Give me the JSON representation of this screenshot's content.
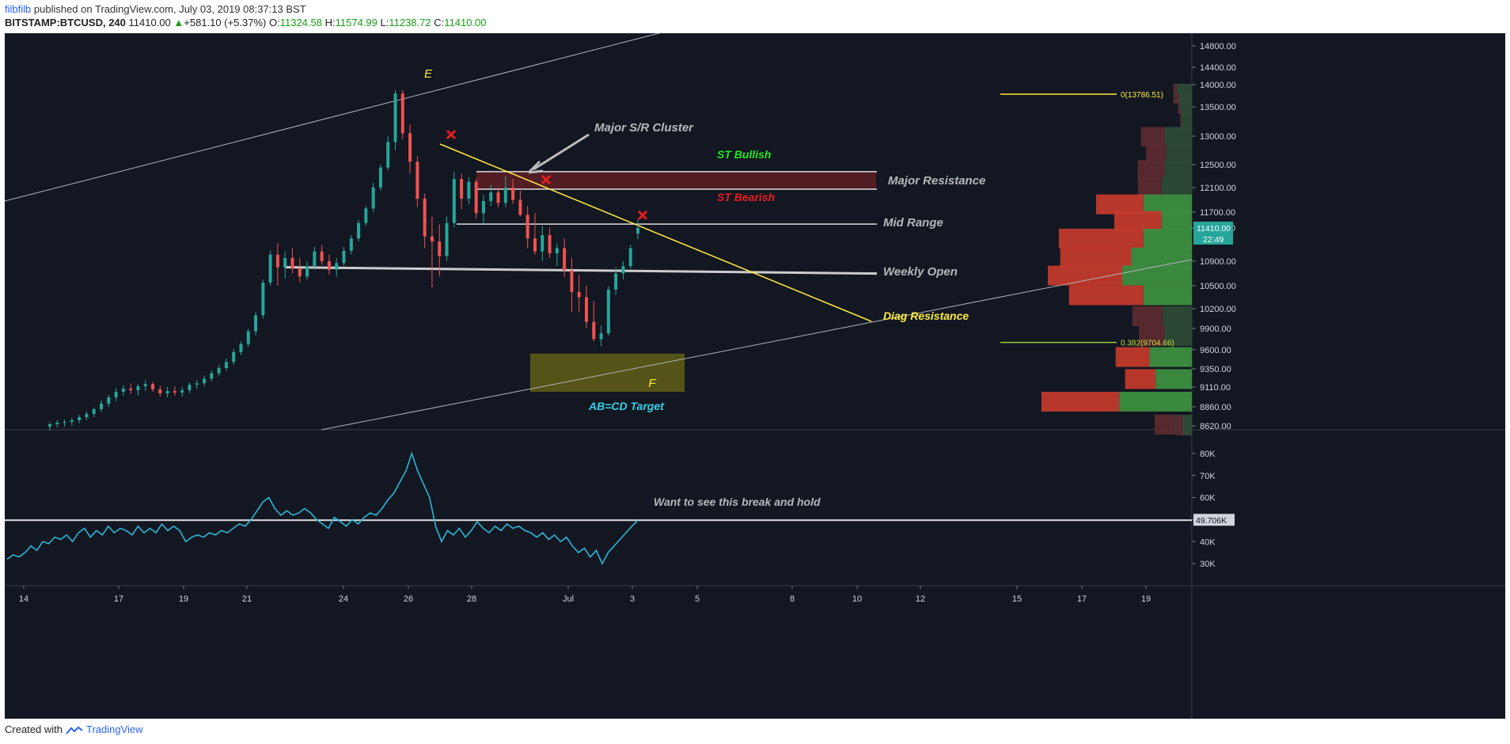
{
  "header": {
    "author": "filbfilb",
    "published_text": "published on TradingView.com, July 03, 2019 08:37:13 BST"
  },
  "symbol_line": {
    "symbol": "BITSTAMP:BTCUSD, 240",
    "last": "11410.00",
    "change_arrow": "▲",
    "change": "+581.10 (+5.37%)",
    "open_label": "O:",
    "open": "11324.58",
    "high_label": "H:",
    "high": "11574.99",
    "low_label": "L:",
    "low": "11238.72",
    "close_label": "C:",
    "close": "11410.00"
  },
  "footer": {
    "created_with": "Created with",
    "brand": "TradingView"
  },
  "colors": {
    "background": "#131722",
    "up": "#26a69a",
    "down": "#ef5350",
    "annotation_yellow": "#ffeb3b",
    "annotation_grey": "#c8c8c8",
    "bullish_green": "#1ee81e",
    "bearish_red": "#e81e1e",
    "target_cyan": "#33d1e8",
    "indicator_line": "#29b6d6"
  },
  "chart_data": {
    "type": "candlestick",
    "price_axis": {
      "ticks": [
        "14800.00",
        "14400.00",
        "14000.00",
        "13500.00",
        "13000.00",
        "12500.00",
        "12100.00",
        "11700.00",
        "11410.00",
        "10900.00",
        "10500.00",
        "10200.00",
        "9900.00",
        "9600.00",
        "9350.00",
        "9110.00",
        "8860.00",
        "8620.00"
      ],
      "ylim": [
        8620,
        14800
      ],
      "last_price_label": "11410.00",
      "countdown_label": "22:49"
    },
    "time_axis": {
      "ticks": [
        "14",
        "17",
        "19",
        "21",
        "24",
        "26",
        "28",
        "Jul",
        "3",
        "5",
        "8",
        "10",
        "12",
        "15",
        "17",
        "19"
      ]
    },
    "candles_ohlc": [
      [
        8610,
        8670,
        8560,
        8640
      ],
      [
        8640,
        8690,
        8600,
        8660
      ],
      [
        8660,
        8700,
        8610,
        8670
      ],
      [
        8670,
        8720,
        8620,
        8690
      ],
      [
        8690,
        8760,
        8650,
        8730
      ],
      [
        8730,
        8800,
        8690,
        8770
      ],
      [
        8770,
        8850,
        8730,
        8830
      ],
      [
        8830,
        8940,
        8790,
        8900
      ],
      [
        8900,
        9010,
        8860,
        8980
      ],
      [
        8980,
        9100,
        8930,
        9050
      ],
      [
        9050,
        9130,
        9000,
        9090
      ],
      [
        9090,
        9160,
        9020,
        9070
      ],
      [
        9070,
        9150,
        9000,
        9120
      ],
      [
        9120,
        9200,
        9060,
        9150
      ],
      [
        9150,
        9180,
        9050,
        9080
      ],
      [
        9080,
        9130,
        8990,
        9030
      ],
      [
        9030,
        9110,
        8980,
        9060
      ],
      [
        9060,
        9120,
        9000,
        9040
      ],
      [
        9040,
        9110,
        8990,
        9070
      ],
      [
        9070,
        9170,
        9030,
        9140
      ],
      [
        9140,
        9200,
        9090,
        9160
      ],
      [
        9160,
        9260,
        9120,
        9220
      ],
      [
        9220,
        9330,
        9180,
        9290
      ],
      [
        9290,
        9400,
        9250,
        9360
      ],
      [
        9360,
        9490,
        9320,
        9440
      ],
      [
        9440,
        9610,
        9400,
        9570
      ],
      [
        9570,
        9720,
        9530,
        9680
      ],
      [
        9680,
        9900,
        9640,
        9860
      ],
      [
        9860,
        10150,
        9800,
        10100
      ],
      [
        10100,
        10600,
        10050,
        10550
      ],
      [
        10550,
        11060,
        10500,
        11000
      ],
      [
        11000,
        11180,
        10500,
        10800
      ],
      [
        10800,
        11050,
        10620,
        10950
      ],
      [
        10950,
        11100,
        10700,
        10780
      ],
      [
        10780,
        10950,
        10550,
        10650
      ],
      [
        10650,
        10900,
        10600,
        10820
      ],
      [
        10820,
        11120,
        10760,
        11050
      ],
      [
        11050,
        11150,
        10840,
        10900
      ],
      [
        10900,
        11000,
        10680,
        10760
      ],
      [
        10760,
        10950,
        10650,
        10870
      ],
      [
        10870,
        11120,
        10820,
        11060
      ],
      [
        11060,
        11300,
        11000,
        11250
      ],
      [
        11250,
        11560,
        11200,
        11500
      ],
      [
        11500,
        11800,
        11450,
        11760
      ],
      [
        11760,
        12180,
        11700,
        12100
      ],
      [
        12100,
        12500,
        12050,
        12450
      ],
      [
        12450,
        13000,
        12400,
        12900
      ],
      [
        12900,
        13880,
        12750,
        13800
      ],
      [
        13800,
        13880,
        12950,
        13050
      ],
      [
        13050,
        13200,
        12350,
        12550
      ],
      [
        12550,
        12650,
        11780,
        11920
      ],
      [
        11920,
        12000,
        11100,
        11280
      ],
      [
        11280,
        11620,
        10480,
        11200
      ],
      [
        11200,
        11480,
        10650,
        10980
      ],
      [
        10980,
        11620,
        10900,
        11500
      ],
      [
        11500,
        12380,
        11420,
        12250
      ],
      [
        12250,
        12350,
        11750,
        11920
      ],
      [
        11920,
        12280,
        11820,
        12200
      ],
      [
        12200,
        12250,
        11580,
        11680
      ],
      [
        11680,
        11980,
        11500,
        11880
      ],
      [
        11880,
        12150,
        11800,
        12020
      ],
      [
        12020,
        12100,
        11780,
        11850
      ],
      [
        11850,
        12300,
        11780,
        12100
      ],
      [
        12100,
        12250,
        11830,
        11900
      ],
      [
        11900,
        12050,
        11620,
        11650
      ],
      [
        11650,
        11800,
        11100,
        11250
      ],
      [
        11250,
        11680,
        11000,
        11050
      ],
      [
        11050,
        11450,
        10900,
        11300
      ],
      [
        11300,
        11420,
        10950,
        11020
      ],
      [
        11020,
        11180,
        10820,
        11100
      ],
      [
        11100,
        11250,
        10640,
        10750
      ],
      [
        10750,
        10950,
        10150,
        10420
      ],
      [
        10420,
        10680,
        10150,
        10350
      ],
      [
        10350,
        10500,
        9900,
        10000
      ],
      [
        10000,
        10300,
        9720,
        9750
      ],
      [
        9750,
        9950,
        9650,
        9830
      ],
      [
        9830,
        10500,
        9800,
        10450
      ],
      [
        10450,
        10800,
        10380,
        10700
      ],
      [
        10700,
        10900,
        10600,
        10820
      ],
      [
        10820,
        11150,
        10780,
        11100
      ],
      [
        11324.58,
        11574.99,
        11238.72,
        11410
      ]
    ],
    "volume_profile_rows": [
      {
        "price": 13790,
        "up": 0.25,
        "down": 0.05
      },
      {
        "price": 13560,
        "up": 0.2,
        "down": 0.03
      },
      {
        "price": 13270,
        "up": 0.17,
        "down": 0.02
      },
      {
        "price": 12980,
        "up": 0.45,
        "down": 0.35
      },
      {
        "price": 12690,
        "up": 0.42,
        "down": 0.3
      },
      {
        "price": 12400,
        "up": 0.45,
        "down": 0.4
      },
      {
        "price": 12110,
        "up": 0.5,
        "down": 0.35
      },
      {
        "price": 11820,
        "up": 0.8,
        "down": 0.7
      },
      {
        "price": 11530,
        "up": 0.5,
        "down": 0.7
      },
      {
        "price": 11240,
        "up": 0.8,
        "down": 1.25
      },
      {
        "price": 10950,
        "up": 1.0,
        "down": 1.05
      },
      {
        "price": 10660,
        "up": 1.15,
        "down": 1.1
      },
      {
        "price": 10370,
        "up": 0.8,
        "down": 1.1
      },
      {
        "price": 10080,
        "up": 0.48,
        "down": 0.45
      },
      {
        "price": 9790,
        "up": 0.45,
        "down": 0.38
      },
      {
        "price": 9500,
        "up": 0.7,
        "down": 0.5
      },
      {
        "price": 9210,
        "up": 0.6,
        "down": 0.45
      },
      {
        "price": 8920,
        "up": 1.2,
        "down": 1.15
      },
      {
        "price": 8630,
        "up": 0.28,
        "down": 0.3
      },
      {
        "price": 8620,
        "up": 0.15,
        "down": 0.1
      }
    ],
    "fib_levels": [
      {
        "label": "0(13786.51)",
        "price": 13786.51
      },
      {
        "label": "0.382(9704.66)",
        "price": 9704.66
      }
    ],
    "annotations": {
      "point_e": "E",
      "point_f": "F",
      "major_sr_cluster": "Major S/R Cluster",
      "st_bullish": "ST Bullish",
      "st_bearish": "ST Bearish",
      "major_resistance": "Major Resistance",
      "mid_range": "Mid Range",
      "weekly_open": "Weekly Open",
      "diag_resistance": "Diag Resistance",
      "abcd_target": "AB=CD Target",
      "indicator_note": "Want to see this break and hold"
    },
    "levels": {
      "major_resistance_zone": [
        12100,
        12350
      ],
      "mid_range": 11480,
      "weekly_open": 10750,
      "abcd_target_zone": [
        9050,
        9550
      ]
    },
    "indicator": {
      "axis_ticks": [
        "80K",
        "70K",
        "60K",
        "50K",
        "40K",
        "30K"
      ],
      "ylim": [
        25,
        85
      ],
      "last_value_label": "49.706K",
      "hold_level": 49.706,
      "values": [
        32,
        34,
        33,
        35,
        38,
        36,
        40,
        39,
        42,
        41,
        43,
        40,
        44,
        46,
        42,
        45,
        43,
        47,
        44,
        46,
        45,
        43,
        47,
        44,
        46,
        44,
        48,
        45,
        47,
        45,
        40,
        42,
        43,
        42,
        44,
        43,
        45,
        44,
        46,
        48,
        47,
        50,
        54,
        58,
        60,
        55,
        52,
        54,
        52,
        53,
        55,
        53,
        50,
        48,
        46,
        51,
        49,
        47,
        50,
        48,
        51,
        53,
        52,
        55,
        59,
        62,
        67,
        72,
        80,
        72,
        66,
        60,
        47,
        40,
        45,
        43,
        46,
        42,
        45,
        49,
        46,
        44,
        47,
        45,
        48,
        46,
        47,
        45,
        44,
        42,
        44,
        41,
        43,
        40,
        42,
        38,
        35,
        37,
        33,
        36,
        30,
        35,
        38,
        41,
        44,
        47,
        49.7
      ]
    }
  }
}
